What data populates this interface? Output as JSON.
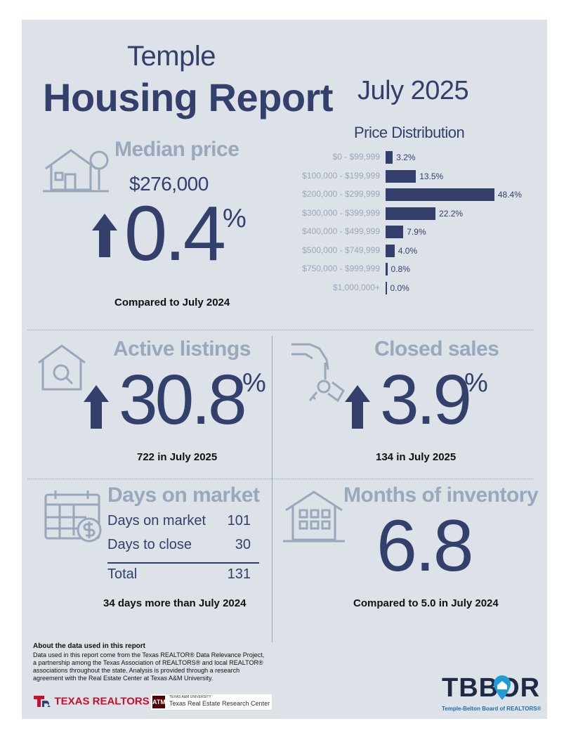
{
  "header": {
    "city": "Temple",
    "title": "Housing Report",
    "period": "July 2025"
  },
  "median": {
    "title": "Median price",
    "price": "$276,000",
    "change": "0.4",
    "pct": "%",
    "caption": "Compared to July 2024"
  },
  "chart_data": {
    "type": "bar",
    "title": "Price Distribution",
    "categories": [
      "$0 - $99,999",
      "$100,000 - $199,999",
      "$200,000 - $299,999",
      "$300,000 - $399,999",
      "$400,000 - $499,999",
      "$500,000 - $749,999",
      "$750,000 - $999,999",
      "$1,000,000+"
    ],
    "values": [
      3.2,
      13.5,
      48.4,
      22.2,
      7.9,
      4.0,
      0.8,
      0.0
    ],
    "labels": [
      "3.2%",
      "13.5%",
      "48.4%",
      "22.2%",
      "7.9%",
      "4.0%",
      "0.8%",
      "0.0%"
    ],
    "orientation": "horizontal",
    "xlim": [
      0,
      50
    ]
  },
  "active": {
    "title": "Active listings",
    "change": "30.8",
    "pct": "%",
    "caption": "722 in July 2025"
  },
  "closed": {
    "title": "Closed sales",
    "change": "3.9",
    "pct": "%",
    "caption": "134 in July 2025"
  },
  "dom": {
    "title": "Days on market",
    "rows": [
      {
        "label": "Days on market",
        "value": "101"
      },
      {
        "label": "Days to close",
        "value": "30"
      }
    ],
    "total_label": "Total",
    "total_value": "131",
    "caption": "34 days more than July 2024"
  },
  "inventory": {
    "title": "Months of inventory",
    "value": "6.8",
    "caption": "Compared to 5.0 in July 2024"
  },
  "footer": {
    "about_title": "About the data used in this report",
    "about_text": "Data used in this report come from the Texas REALTOR® Data Relevance Project, a partnership among the Texas Association of REALTORS® and local REALTOR® associations throughout the state. Analysis is provided through a research agreement with the Real Estate Center at Texas A&M University.",
    "texas_realtors": "TEXAS REALTORS",
    "tamu_small": "TEXAS A&M UNIVERSITY",
    "tamu_center": "Texas Real Estate Research Center",
    "tbbor_logo": "TBBOR",
    "tbbor_name": "Temple-Belton Board of REALTORS®"
  },
  "colors": {
    "navy": "#34406b",
    "light": "#9aa8bc",
    "panel": "#dde1e8",
    "red": "#c8102e",
    "maroon": "#500000",
    "blue": "#1f9bd7"
  }
}
